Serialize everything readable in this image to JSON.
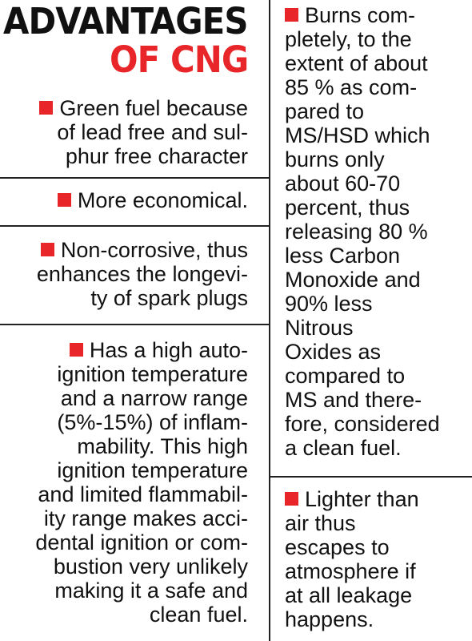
{
  "title": {
    "line1": "ADVANTAGES",
    "line2": "OF CNG"
  },
  "colors": {
    "accent": "#e8262a",
    "text": "#111111",
    "rule": "#222222"
  },
  "left_items": [
    {
      "lines": [
        "Green fuel because",
        "of lead free and sul-",
        "phur free character"
      ]
    },
    {
      "lines": [
        "More economical."
      ]
    },
    {
      "lines": [
        "Non-corrosive, thus",
        "enhances the longevi-",
        "ty of spark plugs"
      ]
    },
    {
      "lines": [
        "Has a high auto-",
        "ignition temperature",
        "and a narrow range",
        "(5%-15%) of inflam-",
        "mability. This high",
        "ignition temperature",
        "and limited flammabil-",
        "ity range makes acci-",
        "dental ignition or com-",
        "bustion very unlikely",
        "making it a safe and",
        "clean fuel."
      ]
    }
  ],
  "right_items": [
    {
      "lines": [
        "Burns com-",
        "pletely, to the",
        "extent of about",
        "85 % as com-",
        "pared to",
        "MS/HSD which",
        "burns only",
        "about 60-70",
        "percent, thus",
        "releasing 80 %",
        "less Carbon",
        "Monoxide and",
        "90% less",
        "Nitrous",
        "Oxides as",
        "compared to",
        "MS and there-",
        "fore, considered",
        "a clean fuel."
      ]
    },
    {
      "lines": [
        "Lighter than",
        "air thus",
        "escapes to",
        "atmosphere if",
        "at all leakage",
        "happens."
      ]
    }
  ]
}
